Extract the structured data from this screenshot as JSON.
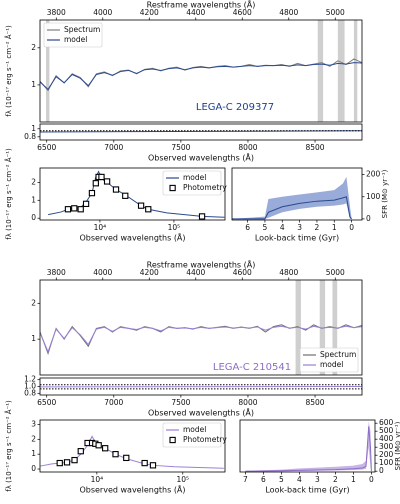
{
  "chart_data": [
    {
      "type": "line",
      "x2label": "Restframe wavelengths (Å)",
      "x2lim": [
        3730,
        5115
      ],
      "x2ticks": [
        3800,
        4000,
        4200,
        4400,
        4600,
        4800,
        5000
      ],
      "xlim": [
        6450,
        8850
      ],
      "ylim": [
        0,
        2.75
      ],
      "yticks": [
        1,
        2
      ],
      "ylabel": "fλ (10⁻¹⁷ erg s⁻¹ cm⁻² Å⁻¹)",
      "legend": "upper left",
      "annotation": "LEGA-C 209377",
      "annotation_color": "#1f3f8f",
      "masks": [
        [
          6495,
          6520
        ],
        [
          8520,
          8560
        ],
        [
          8670,
          8720
        ],
        [
          8790,
          8815
        ]
      ],
      "x": [
        6450,
        6510,
        6570,
        6630,
        6690,
        6750,
        6810,
        6870,
        6930,
        6990,
        7050,
        7110,
        7170,
        7230,
        7290,
        7350,
        7410,
        7470,
        7530,
        7590,
        7650,
        7710,
        7770,
        7830,
        7890,
        7950,
        8010,
        8070,
        8130,
        8190,
        8250,
        8310,
        8370,
        8430,
        8490,
        8550,
        8610,
        8670,
        8730,
        8790,
        8850
      ],
      "series": [
        {
          "name": "Spectrum",
          "color": "#7f7f7f",
          "values": [
            1.1,
            0.85,
            1.25,
            1.05,
            1.3,
            1.2,
            0.95,
            1.3,
            1.35,
            1.25,
            1.38,
            1.4,
            1.3,
            1.42,
            1.45,
            1.38,
            1.45,
            1.48,
            1.4,
            1.47,
            1.5,
            1.46,
            1.5,
            1.52,
            1.48,
            1.5,
            1.55,
            1.5,
            1.53,
            1.52,
            1.55,
            1.5,
            1.58,
            1.52,
            1.56,
            1.6,
            1.5,
            1.65,
            1.55,
            1.7,
            1.6
          ]
        },
        {
          "name": "model",
          "color": "#2a4a8f",
          "values": [
            1.08,
            0.88,
            1.22,
            1.06,
            1.28,
            1.18,
            0.98,
            1.28,
            1.33,
            1.26,
            1.36,
            1.39,
            1.31,
            1.41,
            1.43,
            1.39,
            1.44,
            1.46,
            1.41,
            1.46,
            1.48,
            1.46,
            1.49,
            1.5,
            1.48,
            1.5,
            1.52,
            1.5,
            1.52,
            1.52,
            1.53,
            1.51,
            1.54,
            1.52,
            1.55,
            1.56,
            1.53,
            1.58,
            1.56,
            1.6,
            1.59
          ]
        }
      ]
    },
    {
      "type": "line",
      "xlim": [
        6450,
        8850
      ],
      "xticks": [
        6500,
        7000,
        7500,
        8000,
        8500
      ],
      "xlabel": "Observed wavelengths (Å)",
      "ylim": [
        0.72,
        1.12
      ],
      "yticks": [
        0.8,
        1
      ],
      "x": [
        6450,
        8850
      ],
      "series": [
        {
          "color": "#2a4a8f",
          "values": [
            0.92,
            0.95
          ]
        },
        {
          "color": "#000000",
          "dash": true,
          "values": [
            0.95,
            0.95
          ]
        }
      ]
    },
    {
      "type": "line",
      "xscale": "log",
      "xlim": [
        1550,
        490000
      ],
      "xticks": [
        {
          "value": 10000,
          "label": "10⁴"
        },
        {
          "value": 100000,
          "label": "10⁵"
        }
      ],
      "xlabel": "Observed wavelengths (Å)",
      "ylim": [
        -0.1,
        2.8
      ],
      "yticks": [
        0,
        1,
        2
      ],
      "ylabel": "fλ (10⁻¹⁷ erg s⁻¹ cm⁻² Å⁻¹)",
      "legend": "upper right",
      "series": [
        {
          "name": "model",
          "color": "#2a4a8f",
          "x": [
            2000,
            3000,
            3700,
            4500,
            5500,
            6500,
            7800,
            8800,
            9600,
            10500,
            12500,
            16500,
            22000,
            36000,
            45000,
            80000,
            240000,
            480000
          ],
          "values": [
            0.2,
            0.35,
            0.5,
            0.55,
            0.6,
            0.9,
            1.4,
            2.3,
            2.6,
            2.2,
            2.0,
            1.6,
            1.3,
            0.7,
            0.5,
            0.3,
            0.1,
            0.05
          ]
        },
        {
          "name": "Photometry",
          "color": "#000000",
          "marker": "square",
          "x": [
            3700,
            4500,
            5500,
            6500,
            7800,
            8800,
            9600,
            10500,
            12500,
            16500,
            22000,
            36000,
            45000,
            240000
          ],
          "values": [
            0.5,
            0.55,
            0.5,
            0.8,
            1.4,
            1.95,
            2.3,
            2.3,
            2.05,
            1.6,
            1.25,
            0.7,
            0.5,
            0.1
          ]
        }
      ]
    },
    {
      "type": "line",
      "xlim": [
        6.9,
        -0.6
      ],
      "xticks": [
        6,
        5,
        4,
        3,
        2,
        1,
        0
      ],
      "xlabel": "Look-back time (Gyr)",
      "ylim": [
        -5,
        230
      ],
      "yticks": [
        0,
        100,
        200
      ],
      "yaxis": "right",
      "ylabel": "SFR (M⊙ yr⁻¹)",
      "x": [
        6.9,
        5.0,
        4.8,
        4.0,
        3.0,
        2.0,
        1.0,
        0.5,
        0.3,
        0.1,
        0
      ],
      "series": [
        {
          "color": "#2a4a8f",
          "band_color": "#7f96cf",
          "values": [
            0,
            0,
            30,
            55,
            70,
            80,
            85,
            95,
            100,
            10,
            0
          ],
          "lower": [
            0,
            0,
            5,
            30,
            45,
            55,
            60,
            65,
            70,
            0,
            0
          ],
          "upper": [
            0,
            10,
            90,
            100,
            110,
            120,
            130,
            160,
            190,
            60,
            0
          ]
        }
      ]
    },
    {
      "type": "line",
      "x2label": "Restframe wavelengths (Å)",
      "x2lim": [
        3730,
        5115
      ],
      "x2ticks": [
        3800,
        4000,
        4200,
        4400,
        4600,
        4800,
        5000
      ],
      "xlim": [
        6450,
        8850
      ],
      "ylim": [
        0,
        2.65
      ],
      "yticks": [
        1,
        2
      ],
      "legend": "lower right",
      "annotation": "LEGA-C 210541",
      "annotation_color": "#8e6cc7",
      "masks": [
        [
          8355,
          8395
        ],
        [
          8535,
          8575
        ],
        [
          8630,
          8665
        ]
      ],
      "x": [
        6450,
        6510,
        6570,
        6630,
        6690,
        6750,
        6810,
        6870,
        6930,
        6990,
        7050,
        7110,
        7170,
        7230,
        7290,
        7350,
        7410,
        7470,
        7530,
        7590,
        7650,
        7710,
        7770,
        7830,
        7890,
        7950,
        8010,
        8070,
        8130,
        8190,
        8250,
        8310,
        8370,
        8430,
        8490,
        8550,
        8610,
        8670,
        8730,
        8790,
        8850
      ],
      "series": [
        {
          "name": "Spectrum",
          "color": "#6f6f6f",
          "values": [
            1.2,
            0.6,
            1.3,
            1.0,
            1.35,
            1.1,
            0.8,
            1.3,
            1.35,
            1.2,
            1.35,
            1.3,
            1.25,
            1.35,
            1.3,
            1.2,
            1.35,
            1.3,
            1.32,
            1.28,
            1.35,
            1.3,
            1.33,
            1.36,
            1.3,
            1.34,
            1.3,
            1.36,
            1.2,
            1.35,
            1.4,
            1.3,
            1.35,
            1.25,
            1.4,
            1.3,
            1.35,
            1.3,
            1.4,
            1.32,
            1.38
          ]
        },
        {
          "name": "model",
          "color": "#9c7fd6",
          "values": [
            1.18,
            0.65,
            1.28,
            1.02,
            1.32,
            1.12,
            0.85,
            1.28,
            1.33,
            1.22,
            1.33,
            1.3,
            1.27,
            1.33,
            1.3,
            1.23,
            1.33,
            1.3,
            1.31,
            1.29,
            1.33,
            1.3,
            1.32,
            1.34,
            1.31,
            1.33,
            1.31,
            1.34,
            1.25,
            1.33,
            1.36,
            1.31,
            1.33,
            1.28,
            1.36,
            1.31,
            1.33,
            1.31,
            1.36,
            1.32,
            1.35
          ]
        }
      ]
    },
    {
      "type": "line",
      "xlim": [
        6450,
        8850
      ],
      "xticks": [
        6500,
        7000,
        7500,
        8000,
        8500
      ],
      "xlabel": "Observed wavelengths (Å)",
      "ylim": [
        0.75,
        1.25
      ],
      "yticks": [
        0.8,
        {
          "value": 1,
          "label": "1.0"
        },
        1.2
      ],
      "x": [
        6450,
        8850
      ],
      "series": [
        {
          "color": "#000000",
          "dash": true,
          "values": [
            0.93,
            0.93
          ]
        },
        {
          "color": "#000000",
          "dash": true,
          "values": [
            1.05,
            1.05
          ]
        },
        {
          "color": "#9c7fd6",
          "values": [
            0.99,
            1.0
          ]
        }
      ]
    },
    {
      "type": "line",
      "xscale": "log",
      "xlim": [
        2180,
        310000
      ],
      "xticks": [
        {
          "value": 10000,
          "label": "10⁴"
        },
        {
          "value": 100000,
          "label": "10⁵"
        }
      ],
      "xlabel": "Observed wavelengths (Å)",
      "ylim": [
        -0.2,
        3.3
      ],
      "yticks": [
        0,
        1,
        2,
        3
      ],
      "ylabel": "fλ (10⁻¹⁷ erg s⁻¹ cm⁻² Å⁻¹)",
      "legend": "upper right",
      "series": [
        {
          "name": "model",
          "color": "#9c7fd6",
          "x": [
            2200,
            3000,
            3700,
            4500,
            5500,
            6500,
            7800,
            8800,
            9600,
            10500,
            12500,
            16500,
            22000,
            36000,
            45000,
            80000,
            300000
          ],
          "values": [
            0.2,
            0.35,
            0.4,
            0.45,
            0.6,
            1.0,
            1.6,
            2.2,
            1.8,
            1.6,
            1.4,
            1.0,
            0.7,
            0.35,
            0.25,
            0.15,
            0.05
          ]
        },
        {
          "name": "Photometry",
          "color": "#000000",
          "marker": "square",
          "x": [
            3700,
            4500,
            5500,
            6500,
            7800,
            8800,
            9600,
            10500,
            12500,
            16500,
            22000,
            36000,
            45000
          ],
          "values": [
            0.4,
            0.45,
            0.6,
            1.2,
            1.75,
            1.75,
            1.7,
            1.6,
            1.4,
            1.0,
            0.75,
            0.4,
            0.25
          ]
        }
      ]
    },
    {
      "type": "line",
      "xlim": [
        7.3,
        -0.2
      ],
      "xticks": [
        7,
        6,
        5,
        4,
        3,
        2,
        1,
        0
      ],
      "xlabel": "Look-back time (Gyr)",
      "ylim": [
        -10,
        640
      ],
      "yticks": [
        0,
        100,
        200,
        300,
        400,
        500,
        600
      ],
      "yaxis": "right",
      "ylabel": "SFR (M⊙ yr⁻¹)",
      "x": [
        7.0,
        5.0,
        4.0,
        3.0,
        2.0,
        1.0,
        0.5,
        0.3,
        0.15,
        0.05,
        0
      ],
      "series": [
        {
          "color": "#8e6cc7",
          "band_color": "#b9a3de",
          "values": [
            0,
            5,
            10,
            15,
            20,
            30,
            40,
            60,
            560,
            300,
            0
          ],
          "lower": [
            0,
            0,
            2,
            5,
            8,
            15,
            20,
            30,
            300,
            50,
            0
          ],
          "upper": [
            5,
            20,
            35,
            45,
            55,
            70,
            90,
            130,
            620,
            500,
            0
          ]
        }
      ]
    }
  ]
}
